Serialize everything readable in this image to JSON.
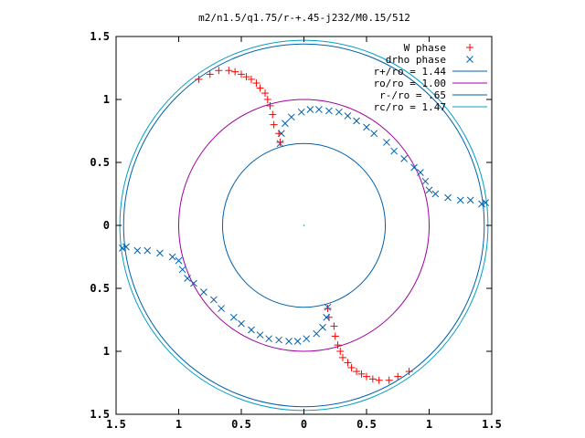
{
  "chart_data": {
    "type": "scatter",
    "title": "m2/n1.5/q1.75/r-+.45-j232/M0.15/512",
    "xlim": [
      -1.5,
      1.5
    ],
    "ylim": [
      -1.5,
      1.5
    ],
    "x_tick_values": [
      -1.5,
      -1,
      -0.5,
      0,
      0.5,
      1,
      1.5
    ],
    "x_tick_labels": [
      "1.5",
      "1",
      "0.5",
      "0",
      "0.5",
      "1",
      "1.5"
    ],
    "y_tick_values": [
      1.5,
      1,
      0.5,
      0,
      -0.5,
      -1,
      -1.5
    ],
    "y_tick_labels": [
      "1.5",
      "1",
      "0.5",
      "0",
      "0.5",
      "1",
      "1.5"
    ],
    "grid": false,
    "legend_position": "top-right",
    "series": [
      {
        "name": "W phase",
        "marker": "plus",
        "color": "#ff0000",
        "points": [
          [
            -0.84,
            1.16
          ],
          [
            -0.75,
            1.2
          ],
          [
            -0.68,
            1.23
          ],
          [
            -0.6,
            1.23
          ],
          [
            -0.55,
            1.22
          ],
          [
            -0.5,
            1.2
          ],
          [
            -0.46,
            1.18
          ],
          [
            -0.42,
            1.16
          ],
          [
            -0.38,
            1.13
          ],
          [
            -0.35,
            1.09
          ],
          [
            -0.31,
            1.05
          ],
          [
            -0.29,
            1.0
          ],
          [
            -0.27,
            0.95
          ],
          [
            -0.25,
            0.88
          ],
          [
            -0.24,
            0.8
          ],
          [
            -0.2,
            0.73
          ],
          [
            -0.19,
            0.66
          ],
          [
            0.84,
            -1.16
          ],
          [
            0.75,
            -1.2
          ],
          [
            0.68,
            -1.23
          ],
          [
            0.6,
            -1.23
          ],
          [
            0.55,
            -1.22
          ],
          [
            0.5,
            -1.2
          ],
          [
            0.46,
            -1.18
          ],
          [
            0.42,
            -1.16
          ],
          [
            0.38,
            -1.13
          ],
          [
            0.35,
            -1.09
          ],
          [
            0.31,
            -1.05
          ],
          [
            0.29,
            -1.0
          ],
          [
            0.27,
            -0.95
          ],
          [
            0.25,
            -0.88
          ],
          [
            0.24,
            -0.8
          ],
          [
            0.2,
            -0.73
          ],
          [
            0.19,
            -0.66
          ]
        ]
      },
      {
        "name": "drho phase",
        "marker": "cross",
        "color": "#0060ad",
        "points": [
          [
            -0.19,
            0.65
          ],
          [
            -0.18,
            0.73
          ],
          [
            -0.15,
            0.81
          ],
          [
            -0.1,
            0.86
          ],
          [
            -0.02,
            0.9
          ],
          [
            0.05,
            0.92
          ],
          [
            0.12,
            0.92
          ],
          [
            0.2,
            0.91
          ],
          [
            0.28,
            0.9
          ],
          [
            0.35,
            0.87
          ],
          [
            0.42,
            0.83
          ],
          [
            0.5,
            0.78
          ],
          [
            0.56,
            0.73
          ],
          [
            0.66,
            0.66
          ],
          [
            0.72,
            0.59
          ],
          [
            0.8,
            0.53
          ],
          [
            0.88,
            0.46
          ],
          [
            0.93,
            0.42
          ],
          [
            0.97,
            0.35
          ],
          [
            1.0,
            0.28
          ],
          [
            1.05,
            0.25
          ],
          [
            1.15,
            0.22
          ],
          [
            1.25,
            0.2
          ],
          [
            1.33,
            0.2
          ],
          [
            1.42,
            0.17
          ],
          [
            1.45,
            0.18
          ],
          [
            0.19,
            -0.65
          ],
          [
            0.18,
            -0.73
          ],
          [
            0.15,
            -0.81
          ],
          [
            0.1,
            -0.86
          ],
          [
            0.02,
            -0.9
          ],
          [
            -0.05,
            -0.92
          ],
          [
            -0.12,
            -0.92
          ],
          [
            -0.2,
            -0.91
          ],
          [
            -0.28,
            -0.9
          ],
          [
            -0.35,
            -0.87
          ],
          [
            -0.42,
            -0.83
          ],
          [
            -0.5,
            -0.78
          ],
          [
            -0.56,
            -0.73
          ],
          [
            -0.66,
            -0.66
          ],
          [
            -0.72,
            -0.59
          ],
          [
            -0.8,
            -0.53
          ],
          [
            -0.88,
            -0.46
          ],
          [
            -0.93,
            -0.42
          ],
          [
            -0.97,
            -0.35
          ],
          [
            -1.0,
            -0.28
          ],
          [
            -1.05,
            -0.25
          ],
          [
            -1.15,
            -0.22
          ],
          [
            -1.25,
            -0.2
          ],
          [
            -1.33,
            -0.2
          ],
          [
            -1.42,
            -0.17
          ],
          [
            -1.45,
            -0.18
          ]
        ]
      }
    ],
    "circles": [
      {
        "name": "r+/ro = 1.44",
        "radius": 1.44,
        "color": "#0060ad"
      },
      {
        "name": "ro/ro = 1.00",
        "radius": 1.0,
        "color": "#a000a0"
      },
      {
        "name": "r-/ro = .65",
        "radius": 0.65,
        "color": "#0060ad"
      },
      {
        "name": "rc/ro = 1.47",
        "radius": 1.47,
        "color": "#00a0c0"
      }
    ]
  }
}
